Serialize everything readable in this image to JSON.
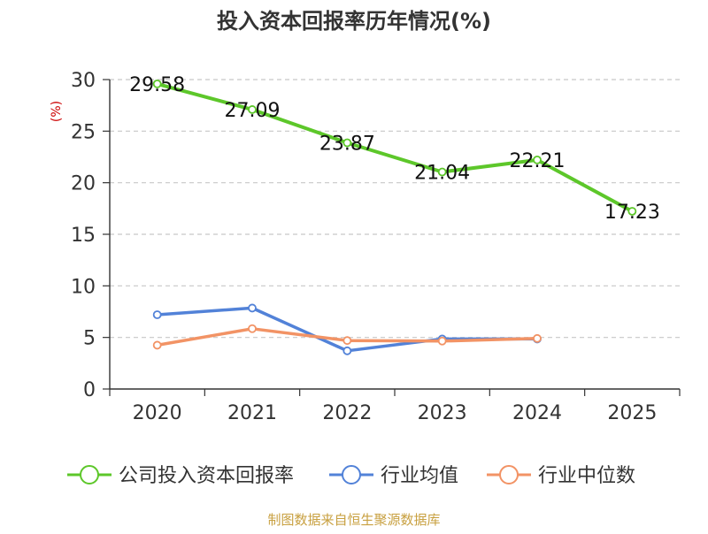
{
  "chart_data": {
    "type": "line",
    "title": "投入资本回报率历年情况(%)",
    "ylabel": "(%)",
    "xlabel": "",
    "categories": [
      "2020",
      "2021",
      "2022",
      "2023",
      "2024",
      "2025"
    ],
    "ylim": [
      0,
      30
    ],
    "yticks": [
      0,
      5,
      10,
      15,
      20,
      25,
      30
    ],
    "grid": true,
    "legend_position": "bottom",
    "series": [
      {
        "name": "公司投入资本回报率",
        "values": [
          29.58,
          27.09,
          23.87,
          21.04,
          22.21,
          17.23
        ],
        "labels": [
          "29.58",
          "27.09",
          "23.87",
          "21.04",
          "22.21",
          "17.23"
        ],
        "color": "#5DC72A"
      },
      {
        "name": "行业均值",
        "values": [
          7.2,
          7.85,
          3.7,
          4.85,
          4.85,
          null
        ],
        "color": "#5282D8"
      },
      {
        "name": "行业中位数",
        "values": [
          4.25,
          5.85,
          4.7,
          4.65,
          4.9,
          null
        ],
        "color": "#F29365"
      }
    ]
  },
  "source": "制图数据来自恒生聚源数据库",
  "colors": {
    "title": "#333333",
    "axis": "#333333",
    "grid": "#C8C8C8",
    "ylabel": "#CC0000",
    "source": "#C8A040"
  }
}
